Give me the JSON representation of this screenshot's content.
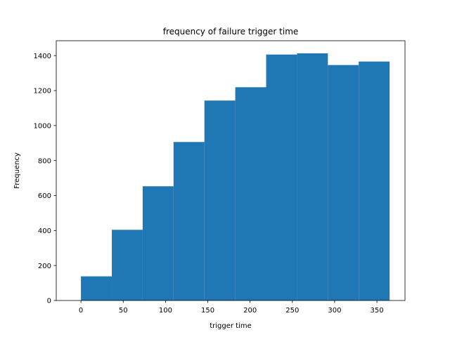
{
  "chart_data": {
    "type": "bar",
    "title": "frequency of failure trigger time",
    "xlabel": "trigger time",
    "ylabel": "Frequency",
    "xlim": [
      -29.2,
      383.2
    ],
    "ylim": [
      0,
      1485
    ],
    "xticks": [
      0,
      50,
      100,
      150,
      200,
      250,
      300,
      350
    ],
    "yticks": [
      0,
      200,
      400,
      600,
      800,
      1000,
      1200,
      1400
    ],
    "bin_edges": [
      0,
      36.5,
      73,
      109.5,
      146,
      182.5,
      219,
      255.5,
      292,
      328.5,
      365
    ],
    "values": [
      138,
      404,
      653,
      906,
      1143,
      1219,
      1406,
      1413,
      1346,
      1366
    ],
    "bar_color": "#1f77b4",
    "grid": false
  }
}
